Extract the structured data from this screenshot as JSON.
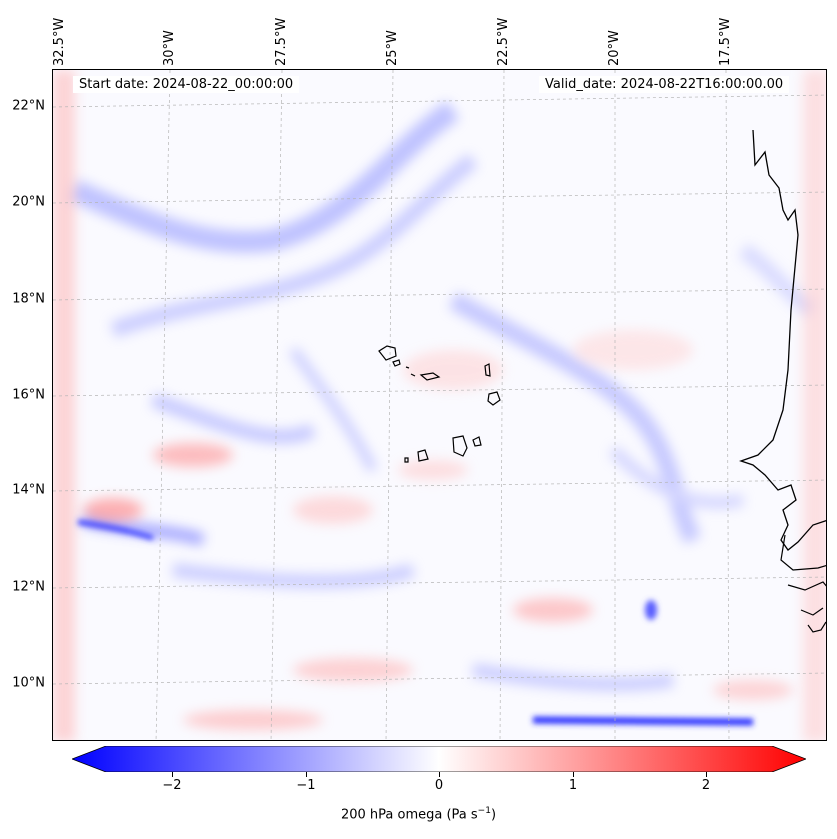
{
  "map": {
    "lon_labels": [
      "32.5°W",
      "30°W",
      "27.5°W",
      "25°W",
      "22.5°W",
      "20°W",
      "17.5°W"
    ],
    "lat_labels": [
      "22°N",
      "20°N",
      "18°N",
      "16°N",
      "14°N",
      "12°N",
      "10°N"
    ],
    "start_date": "Start date: 2024-08-22_00:00:00",
    "valid_date": "Valid_date: 2024-08-22T16:00:00.00",
    "field_colors": {
      "negative": "#0000ff",
      "zero": "#ffffff",
      "positive": "#ff0000"
    },
    "coastline_color": "#000000",
    "gridlines": "dashed gray"
  },
  "colorbar": {
    "ticks": [
      "−2",
      "−1",
      "0",
      "1",
      "2"
    ],
    "tick_values": [
      -2,
      -1,
      0,
      1,
      2
    ],
    "range": [
      -2.75,
      2.75
    ],
    "extend": "both",
    "label_text": "200 hPa omega (Pa s",
    "label_exp": "−1",
    "label_close": ")"
  }
}
